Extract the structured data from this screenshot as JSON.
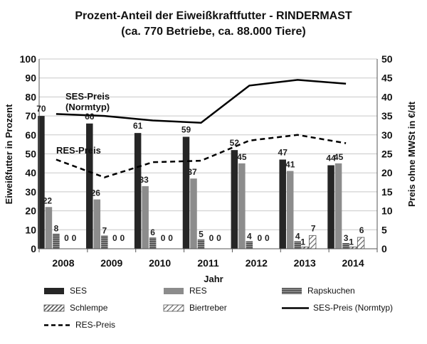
{
  "chart_data": {
    "type": "bar",
    "title": "Prozent-Anteil der Eiweißkraftfutter - RINDERMAST",
    "subtitle": "(ca. 770 Betriebe, ca. 88.000 Tiere)",
    "xlabel": "Jahr",
    "ylabel": "Eiweißfutter in Prozent",
    "y2label": "Preis ohne MWSt in €/dt",
    "categories": [
      "2008",
      "2009",
      "2010",
      "2011",
      "2012",
      "2013",
      "2014"
    ],
    "ylim": [
      0,
      100
    ],
    "y2lim": [
      0,
      50
    ],
    "yticks": [
      "0",
      "10",
      "20",
      "30",
      "40",
      "50",
      "60",
      "70",
      "80",
      "90",
      "100"
    ],
    "y2ticks": [
      "0",
      "5",
      "10",
      "15",
      "20",
      "25",
      "30",
      "35",
      "40",
      "45",
      "50"
    ],
    "grid": true,
    "legend_position": "bottom",
    "series": [
      {
        "name": "SES",
        "kind": "bar",
        "color": "#262626",
        "values": [
          70,
          66,
          61,
          59,
          52,
          47,
          44
        ],
        "labels": [
          "70",
          "66",
          "61",
          "59",
          "52",
          "47",
          "44"
        ]
      },
      {
        "name": "RES",
        "kind": "bar",
        "color": "#8c8c8c",
        "values": [
          22,
          26,
          33,
          37,
          45,
          41,
          45
        ],
        "labels": [
          "22",
          "26",
          "33",
          "37",
          "45",
          "41",
          "45"
        ]
      },
      {
        "name": "Rapskuchen",
        "kind": "bar",
        "color": "#7a7a7a",
        "values": [
          8,
          7,
          6,
          5,
          4,
          4,
          3
        ],
        "labels": [
          "8",
          "7",
          "6",
          "5",
          "4",
          "4",
          "3"
        ]
      },
      {
        "name": "Schlempe",
        "kind": "bar",
        "color": "#9a9a9a",
        "values": [
          0,
          0,
          0,
          0,
          0,
          1,
          1
        ],
        "labels": [
          "0",
          "0",
          "0",
          "0",
          "0",
          "1",
          "1"
        ]
      },
      {
        "name": "Biertreber",
        "kind": "bar",
        "color": "#9a9a9a",
        "values": [
          0,
          0,
          0,
          0,
          0,
          7,
          6
        ],
        "labels": [
          "0",
          "0",
          "0",
          "0",
          "0",
          "7",
          "6"
        ]
      },
      {
        "name": "SES-Preis  (Normtyp)",
        "kind": "line",
        "axis": "right",
        "color": "#000000",
        "values": [
          35.5,
          35,
          33.8,
          33.2,
          43,
          44.5,
          43.5
        ]
      },
      {
        "name": "RES-Preis",
        "kind": "line",
        "axis": "right",
        "color": "#000000",
        "dashed": true,
        "values": [
          23.5,
          18.8,
          22.8,
          23.2,
          28.5,
          30,
          27.8
        ]
      }
    ],
    "annotations": [
      {
        "text": "SES-Preis",
        "near_series": "SES-Preis  (Normtyp)"
      },
      {
        "text": "(Normtyp)",
        "near_series": "SES-Preis  (Normtyp)"
      },
      {
        "text": "RES-Preis",
        "near_series": "RES-Preis"
      }
    ]
  }
}
